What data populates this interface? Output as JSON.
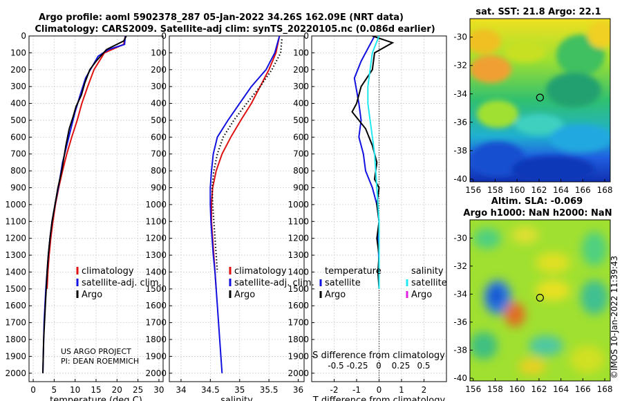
{
  "title_line1": "Argo profile: aoml 5902378_287 05-Jan-2022 34.26S 162.09E (NRT data)",
  "title_line2": "Climatology: CARS2009. Satellite-adj clim: synTS_20220105.nc (0.086d earlier)",
  "colors": {
    "climatology": "#e01010",
    "satellite": "#1010e0",
    "argo": "#000000",
    "sat_s": "#20e8f0",
    "argo_s": "#e020e0"
  },
  "chart_data": [
    {
      "type": "line",
      "id": "temperature",
      "xlabel": "temperature (deg C)",
      "xlim": [
        -1,
        31
      ],
      "xticks": [
        0,
        5,
        10,
        15,
        20,
        25,
        30
      ],
      "yticks": [
        0,
        100,
        200,
        300,
        400,
        500,
        600,
        700,
        800,
        900,
        1000,
        1100,
        1200,
        1300,
        1400,
        1500,
        1600,
        1700,
        1800,
        1900,
        2000
      ],
      "ylim": [
        0,
        2050
      ],
      "series": [
        {
          "name": "climatology",
          "style": "solid",
          "color": "climatology",
          "points": [
            [
              22,
              0
            ],
            [
              21.6,
              50
            ],
            [
              17,
              100
            ],
            [
              14.5,
              200
            ],
            [
              13,
              300
            ],
            [
              11.6,
              400
            ],
            [
              10.5,
              500
            ],
            [
              9.2,
              600
            ],
            [
              8,
              700
            ],
            [
              7,
              800
            ],
            [
              6.1,
              900
            ],
            [
              5.3,
              1000
            ],
            [
              4.7,
              1100
            ],
            [
              4.2,
              1200
            ],
            [
              3.8,
              1300
            ],
            [
              3.5,
              1400
            ],
            [
              3.3,
              1500
            ]
          ]
        },
        {
          "name": "satellite-adj. clim.",
          "style": "solid",
          "color": "satellite",
          "points": [
            [
              22,
              0
            ],
            [
              21.8,
              50
            ],
            [
              18,
              80
            ],
            [
              15.5,
              120
            ],
            [
              12.5,
              250
            ],
            [
              11.2,
              350
            ],
            [
              10,
              450
            ],
            [
              9,
              550
            ],
            [
              8,
              650
            ],
            [
              7,
              750
            ],
            [
              6,
              900
            ],
            [
              5.2,
              1000
            ],
            [
              4.5,
              1100
            ],
            [
              4,
              1200
            ],
            [
              3.6,
              1300
            ],
            [
              3.3,
              1400
            ],
            [
              3,
              1500
            ],
            [
              2.8,
              1600
            ],
            [
              2.6,
              1700
            ],
            [
              2.5,
              1800
            ],
            [
              2.4,
              1900
            ],
            [
              2.3,
              2000
            ]
          ]
        },
        {
          "name": "Argo",
          "style": "solid",
          "color": "argo",
          "points": [
            [
              22.2,
              0
            ],
            [
              21.6,
              30
            ],
            [
              17.5,
              80
            ],
            [
              15,
              150
            ],
            [
              13.5,
              200
            ],
            [
              12.3,
              280
            ],
            [
              11.5,
              350
            ],
            [
              10.2,
              420
            ],
            [
              9.5,
              480
            ],
            [
              8.6,
              550
            ],
            [
              7.8,
              650
            ],
            [
              6.8,
              800
            ],
            [
              5.9,
              900
            ],
            [
              5.2,
              1000
            ],
            [
              4.5,
              1100
            ],
            [
              4,
              1200
            ],
            [
              3.6,
              1300
            ],
            [
              3.3,
              1400
            ],
            [
              3.1,
              1500
            ],
            [
              2.9,
              1600
            ],
            [
              2.7,
              1700
            ],
            [
              2.5,
              1800
            ],
            [
              2.4,
              1900
            ],
            [
              2.3,
              2000
            ]
          ]
        }
      ],
      "legend": [
        "climatology",
        "satellite-adj. clim.",
        "Argo"
      ],
      "annotations": [
        "US ARGO PROJECT",
        "PI: DEAN ROEMMICH"
      ]
    },
    {
      "type": "line",
      "id": "salinity",
      "xlabel": "salinity",
      "xlim": [
        33.8,
        36.1
      ],
      "xticks": [
        34,
        34.5,
        35,
        35.5,
        36
      ],
      "yticks": [
        0,
        100,
        200,
        300,
        400,
        500,
        600,
        700,
        800,
        900,
        1000,
        1100,
        1200,
        1300,
        1400,
        1500,
        1600,
        1700,
        1800,
        1900,
        2000
      ],
      "ylim": [
        0,
        2050
      ],
      "series": [
        {
          "name": "climatology",
          "style": "solid",
          "color": "climatology",
          "points": [
            [
              35.68,
              0
            ],
            [
              35.62,
              100
            ],
            [
              35.5,
              200
            ],
            [
              35.35,
              300
            ],
            [
              35.2,
              400
            ],
            [
              35.02,
              500
            ],
            [
              34.85,
              600
            ],
            [
              34.7,
              700
            ],
            [
              34.6,
              800
            ],
            [
              34.54,
              900
            ],
            [
              34.52,
              1000
            ],
            [
              34.52,
              1100
            ],
            [
              34.54,
              1200
            ],
            [
              34.56,
              1300
            ],
            [
              34.58,
              1400
            ],
            [
              34.6,
              1500
            ]
          ]
        },
        {
          "name": "satellite-adj. clim.",
          "style": "solid",
          "color": "satellite",
          "points": [
            [
              35.68,
              0
            ],
            [
              35.6,
              100
            ],
            [
              35.45,
              200
            ],
            [
              35.2,
              300
            ],
            [
              35,
              400
            ],
            [
              34.8,
              500
            ],
            [
              34.62,
              600
            ],
            [
              34.55,
              700
            ],
            [
              34.52,
              800
            ],
            [
              34.5,
              900
            ],
            [
              34.5,
              1000
            ],
            [
              34.51,
              1100
            ],
            [
              34.53,
              1200
            ],
            [
              34.55,
              1300
            ],
            [
              34.58,
              1400
            ],
            [
              34.6,
              1500
            ],
            [
              34.62,
              1600
            ],
            [
              34.64,
              1700
            ],
            [
              34.66,
              1800
            ],
            [
              34.68,
              1900
            ],
            [
              34.7,
              2000
            ]
          ]
        },
        {
          "name": "Argo",
          "style": "dotted",
          "color": "argo",
          "points": [
            [
              35.72,
              20
            ],
            [
              35.7,
              100
            ],
            [
              35.55,
              200
            ],
            [
              35.35,
              300
            ],
            [
              35.12,
              400
            ],
            [
              34.9,
              500
            ],
            [
              34.72,
              600
            ],
            [
              34.62,
              700
            ],
            [
              34.56,
              800
            ],
            [
              34.53,
              900
            ],
            [
              34.54,
              1000
            ],
            [
              34.56,
              1100
            ],
            [
              34.58,
              1200
            ],
            [
              34.6,
              1300
            ],
            [
              34.62,
              1400
            ]
          ]
        }
      ],
      "legend": [
        "climatology",
        "satellite-adj. clim.",
        "Argo"
      ]
    },
    {
      "type": "line",
      "id": "differences",
      "xlabel": "T difference from climatology",
      "xlabel_top": "S difference from climatology",
      "xlim": [
        -3,
        3
      ],
      "xticks": [
        -2,
        -1,
        0,
        1,
        2
      ],
      "xticks_top": [
        "-0.5",
        "-0.25",
        "0",
        "0.25",
        "0.5"
      ],
      "yticks": [
        0,
        100,
        200,
        300,
        400,
        500,
        600,
        700,
        800,
        900,
        1000,
        1100,
        1200,
        1300,
        1400,
        1500,
        1600,
        1700,
        1800,
        1900,
        2000
      ],
      "ylim": [
        0,
        2050
      ],
      "series": [
        {
          "name": "temperature satellite",
          "style": "solid",
          "color": "satellite",
          "points": [
            [
              -0.2,
              0
            ],
            [
              -0.4,
              50
            ],
            [
              -0.8,
              150
            ],
            [
              -1.1,
              250
            ],
            [
              -0.9,
              400
            ],
            [
              -0.8,
              500
            ],
            [
              -0.9,
              600
            ],
            [
              -0.7,
              700
            ],
            [
              -0.6,
              800
            ],
            [
              -0.3,
              900
            ],
            [
              -0.1,
              1000
            ],
            [
              0,
              1100
            ],
            [
              -0.05,
              1200
            ],
            [
              -0.02,
              1300
            ],
            [
              0,
              1400
            ],
            [
              0,
              1500
            ]
          ]
        },
        {
          "name": "temperature Argo",
          "style": "solid",
          "color": "argo",
          "points": [
            [
              -0.3,
              0
            ],
            [
              0.6,
              40
            ],
            [
              -0.2,
              100
            ],
            [
              -0.3,
              200
            ],
            [
              -0.8,
              300
            ],
            [
              -1,
              400
            ],
            [
              -1.2,
              450
            ],
            [
              -0.6,
              550
            ],
            [
              -0.3,
              650
            ],
            [
              -0.1,
              750
            ],
            [
              -0.2,
              850
            ],
            [
              0,
              900
            ],
            [
              -0.1,
              1000
            ],
            [
              0,
              1100
            ],
            [
              -0.1,
              1200
            ],
            [
              0,
              1300
            ],
            [
              -0.05,
              1400
            ],
            [
              0,
              1500
            ]
          ]
        },
        {
          "name": "salinity satellite",
          "style": "solid",
          "color": "sat_s",
          "points": [
            [
              0,
              0
            ],
            [
              -0.3,
              100
            ],
            [
              -0.4,
              200
            ],
            [
              -0.5,
              300
            ],
            [
              -0.5,
              400
            ],
            [
              -0.4,
              500
            ],
            [
              -0.3,
              600
            ],
            [
              -0.2,
              700
            ],
            [
              -0.15,
              800
            ],
            [
              -0.1,
              900
            ],
            [
              -0.05,
              1000
            ],
            [
              0,
              1100
            ],
            [
              0,
              1200
            ],
            [
              0,
              1300
            ],
            [
              0,
              1400
            ],
            [
              0,
              1500
            ]
          ]
        }
      ],
      "legend_left_title": "temperature",
      "legend_right_title": "salinity",
      "legend_left": [
        "satellite",
        "Argo"
      ],
      "legend_right": [
        "satellite",
        "Argo"
      ]
    },
    {
      "type": "heatmap",
      "id": "sst_map",
      "title": "sat. SST: 21.8 Argo: 22.1",
      "xticks": [
        156,
        158,
        160,
        162,
        164,
        166,
        168
      ],
      "yticks": [
        -30,
        -32,
        -34,
        -36,
        -38,
        -40
      ],
      "xlim": [
        155.7,
        168.5
      ],
      "ylim": [
        -40.2,
        -28.7
      ],
      "marker": [
        162.09,
        -34.26
      ]
    },
    {
      "type": "heatmap",
      "id": "sla_map",
      "title1": "Altim. SLA: -0.069",
      "title2": "Argo h1000: NaN h2000: NaN",
      "xticks": [
        156,
        158,
        160,
        162,
        164,
        166,
        168
      ],
      "yticks": [
        -30,
        -32,
        -34,
        -36,
        -38,
        -40
      ],
      "xlim": [
        155.7,
        168.5
      ],
      "ylim": [
        -40.2,
        -28.7
      ],
      "marker": [
        162.09,
        -34.26
      ]
    }
  ],
  "watermark": "©IMOS 10-Jan-2022 11:39:43"
}
